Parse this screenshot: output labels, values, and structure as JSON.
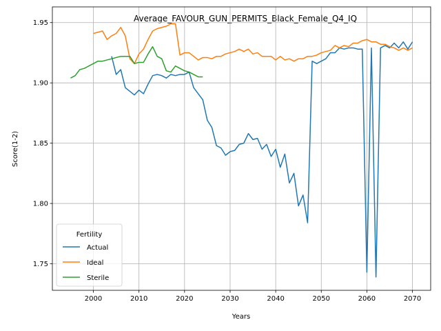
{
  "chart_data": {
    "type": "line",
    "title": "Average_FAVOUR_GUN_PERMITS_Black_Female_Q4_IQ",
    "xlabel": "Years",
    "ylabel": "Score(1-2)",
    "xlim": [
      1991,
      2074
    ],
    "ylim": [
      1.728,
      1.963
    ],
    "xticks": [
      2000,
      2010,
      2020,
      2030,
      2040,
      2050,
      2060,
      2070
    ],
    "yticks": [
      1.75,
      1.8,
      1.85,
      1.9,
      1.95
    ],
    "ytick_labels": [
      "1.75",
      "1.80",
      "1.85",
      "1.90",
      "1.95"
    ],
    "grid": true,
    "legend": {
      "title": "Fertility",
      "placement": "lower-left"
    },
    "series": [
      {
        "name": "Actual",
        "color": "#1f77b4",
        "x": [
          2004,
          2005,
          2006,
          2007,
          2008,
          2009,
          2010,
          2011,
          2012,
          2013,
          2014,
          2015,
          2016,
          2017,
          2018,
          2019,
          2020,
          2021,
          2022,
          2023,
          2024,
          2025,
          2026,
          2027,
          2028,
          2029,
          2030,
          2031,
          2032,
          2033,
          2034,
          2035,
          2036,
          2037,
          2038,
          2039,
          2040,
          2041,
          2042,
          2043,
          2044,
          2045,
          2046,
          2047,
          2048,
          2049,
          2050,
          2051,
          2052,
          2053,
          2054,
          2055,
          2056,
          2057,
          2058,
          2059,
          2060,
          2061,
          2062,
          2063,
          2064,
          2065,
          2066,
          2067,
          2068,
          2069,
          2070
        ],
        "values": [
          1.922,
          1.907,
          1.911,
          1.896,
          1.893,
          1.89,
          1.894,
          1.891,
          1.899,
          1.906,
          1.907,
          1.906,
          1.904,
          1.907,
          1.906,
          1.907,
          1.907,
          1.909,
          1.896,
          1.891,
          1.886,
          1.869,
          1.863,
          1.848,
          1.846,
          1.84,
          1.843,
          1.844,
          1.849,
          1.85,
          1.858,
          1.853,
          1.854,
          1.845,
          1.849,
          1.839,
          1.845,
          1.83,
          1.841,
          1.817,
          1.825,
          1.798,
          1.807,
          1.784,
          1.918,
          1.916,
          1.918,
          1.92,
          1.925,
          1.925,
          1.929,
          1.928,
          1.929,
          1.929,
          1.928,
          1.928,
          1.743,
          1.929,
          1.739,
          1.929,
          1.931,
          1.929,
          1.933,
          1.929,
          1.934,
          1.928,
          1.934
        ]
      },
      {
        "name": "Ideal",
        "color": "#ff7f0e",
        "x": [
          2000,
          2001,
          2002,
          2003,
          2004,
          2005,
          2006,
          2007,
          2008,
          2009,
          2010,
          2011,
          2012,
          2013,
          2014,
          2015,
          2016,
          2017,
          2018,
          2019,
          2020,
          2021,
          2022,
          2023,
          2024,
          2025,
          2026,
          2027,
          2028,
          2029,
          2030,
          2031,
          2032,
          2033,
          2034,
          2035,
          2036,
          2037,
          2038,
          2039,
          2040,
          2041,
          2042,
          2043,
          2044,
          2045,
          2046,
          2047,
          2048,
          2049,
          2050,
          2051,
          2052,
          2053,
          2054,
          2055,
          2056,
          2057,
          2058,
          2059,
          2060,
          2061,
          2062,
          2063,
          2064,
          2065,
          2066,
          2067,
          2068,
          2069,
          2070
        ],
        "values": [
          1.941,
          1.942,
          1.943,
          1.936,
          1.939,
          1.941,
          1.946,
          1.939,
          1.92,
          1.916,
          1.924,
          1.928,
          1.936,
          1.943,
          1.945,
          1.946,
          1.947,
          1.949,
          1.949,
          1.923,
          1.925,
          1.925,
          1.922,
          1.919,
          1.921,
          1.921,
          1.92,
          1.922,
          1.922,
          1.924,
          1.925,
          1.926,
          1.928,
          1.926,
          1.928,
          1.924,
          1.925,
          1.922,
          1.922,
          1.922,
          1.919,
          1.922,
          1.919,
          1.92,
          1.918,
          1.92,
          1.92,
          1.922,
          1.922,
          1.923,
          1.925,
          1.926,
          1.927,
          1.931,
          1.929,
          1.931,
          1.93,
          1.933,
          1.933,
          1.935,
          1.936,
          1.934,
          1.934,
          1.932,
          1.932,
          1.93,
          1.929,
          1.927,
          1.929,
          1.927,
          1.929
        ]
      },
      {
        "name": "Sterile",
        "color": "#2ca02c",
        "x": [
          1995,
          1996,
          1997,
          1998,
          1999,
          2000,
          2001,
          2002,
          2003,
          2004,
          2005,
          2006,
          2007,
          2008,
          2009,
          2010,
          2011,
          2012,
          2013,
          2014,
          2015,
          2016,
          2017,
          2018,
          2019,
          2020,
          2021,
          2022,
          2023,
          2024
        ],
        "values": [
          1.904,
          1.906,
          1.911,
          1.912,
          1.914,
          1.916,
          1.918,
          1.918,
          1.919,
          1.92,
          1.921,
          1.922,
          1.922,
          1.922,
          1.916,
          1.917,
          1.917,
          1.924,
          1.93,
          1.922,
          1.92,
          1.91,
          1.909,
          1.914,
          1.912,
          1.91,
          1.909,
          1.907,
          1.905,
          1.905
        ]
      }
    ]
  }
}
